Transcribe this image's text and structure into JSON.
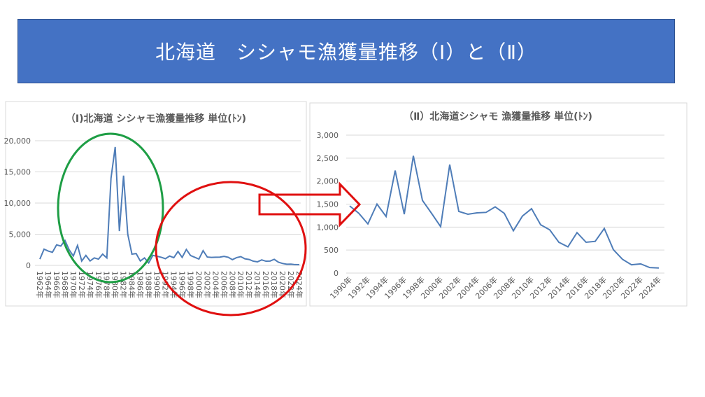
{
  "slide_title": "北海道　シシャモ漁獲量推移（Ⅰ）と（Ⅱ）",
  "colors": {
    "banner": "#4472C4",
    "line": "#4F7DB8",
    "green_ellipse": "#1E9E45",
    "red_marks": "#E01010"
  },
  "chart_data": [
    {
      "type": "line",
      "title": "（Ⅰ)北海道 シシャモ漁獲量推移 単位(ﾄﾝ)",
      "ylim": [
        0,
        20000
      ],
      "yticks": [
        "0",
        "5,000",
        "10,000",
        "15,000",
        "20,000"
      ],
      "grid": true,
      "x_label_suffix": "年",
      "x": [
        1962,
        1963,
        1964,
        1965,
        1966,
        1967,
        1968,
        1969,
        1970,
        1971,
        1972,
        1973,
        1974,
        1975,
        1976,
        1977,
        1978,
        1979,
        1980,
        1981,
        1982,
        1983,
        1984,
        1985,
        1986,
        1987,
        1988,
        1989,
        1990,
        1991,
        1992,
        1993,
        1994,
        1995,
        1996,
        1997,
        1998,
        1999,
        2000,
        2001,
        2002,
        2003,
        2004,
        2005,
        2006,
        2007,
        2008,
        2009,
        2010,
        2011,
        2012,
        2013,
        2014,
        2015,
        2016,
        2017,
        2018,
        2019,
        2020,
        2021,
        2022,
        2023,
        2024
      ],
      "values": [
        1000,
        2600,
        2300,
        2100,
        3300,
        3100,
        4000,
        2500,
        1500,
        3200,
        700,
        1600,
        700,
        1200,
        1000,
        1800,
        1200,
        14000,
        19000,
        5500,
        14400,
        5000,
        1800,
        1900,
        700,
        1200,
        400,
        1600,
        1460,
        1300,
        1070,
        1500,
        1230,
        2230,
        1280,
        2550,
        1580,
        1300,
        1010,
        2360,
        1340,
        1280,
        1310,
        1320,
        1440,
        1300,
        920,
        1240,
        1400,
        1050,
        940,
        670,
        570,
        880,
        670,
        690,
        970,
        510,
        300,
        180,
        200,
        120,
        110
      ]
    },
    {
      "type": "line",
      "title": "（Ⅱ）北海道シシャモ 漁獲量推移 単位(ﾄﾝ)",
      "ylim": [
        0,
        3000
      ],
      "yticks": [
        "0",
        "500",
        "1,000",
        "1,500",
        "2,000",
        "2,500",
        "3,000"
      ],
      "grid": true,
      "x_label_suffix": "年",
      "x": [
        1990,
        1991,
        1992,
        1993,
        1994,
        1995,
        1996,
        1997,
        1998,
        1999,
        2000,
        2001,
        2002,
        2003,
        2004,
        2005,
        2006,
        2007,
        2008,
        2009,
        2010,
        2011,
        2012,
        2013,
        2014,
        2015,
        2016,
        2017,
        2018,
        2019,
        2020,
        2021,
        2022,
        2023,
        2024
      ],
      "values": [
        1460,
        1300,
        1070,
        1500,
        1230,
        2230,
        1280,
        2550,
        1580,
        1300,
        1010,
        2360,
        1340,
        1280,
        1310,
        1320,
        1440,
        1300,
        920,
        1240,
        1400,
        1050,
        940,
        670,
        570,
        880,
        670,
        690,
        970,
        510,
        300,
        180,
        200,
        120,
        110
      ]
    }
  ]
}
